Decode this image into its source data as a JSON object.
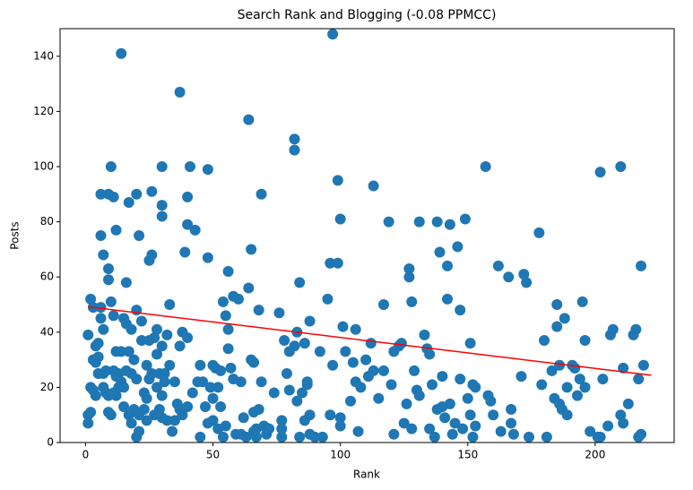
{
  "chart_data": {
    "type": "scatter",
    "title": "Search Rank and Blogging (-0.08 PPMCC)",
    "x_label": "Rank",
    "y_label": "Posts",
    "color": "#1f77b4",
    "x": [
      1,
      1,
      1,
      2,
      2,
      2,
      3,
      3,
      3,
      4,
      4,
      4,
      5,
      5,
      5,
      6,
      6,
      6,
      6,
      7,
      7,
      7,
      7,
      8,
      8,
      9,
      9,
      9,
      9,
      9,
      10,
      10,
      10,
      11,
      11,
      11,
      11,
      12,
      12,
      12,
      12,
      13,
      13,
      14,
      14,
      14,
      15,
      15,
      15,
      16,
      16,
      16,
      17,
      17,
      17,
      18,
      18,
      18,
      19,
      19,
      20,
      20,
      20,
      20,
      21,
      21,
      21,
      22,
      22,
      23,
      23,
      24,
      24,
      24,
      25,
      25,
      25,
      26,
      26,
      26,
      27,
      27,
      28,
      28,
      28,
      29,
      29,
      30,
      30,
      30,
      30,
      30,
      30,
      31,
      31,
      32,
      32,
      33,
      33,
      34,
      35,
      35,
      36,
      37,
      37,
      38,
      40,
      40,
      39,
      41,
      38,
      40,
      37,
      40,
      42,
      43,
      44,
      45,
      45,
      46,
      47,
      48,
      48,
      48,
      49,
      50,
      50,
      50,
      51,
      52,
      52,
      53,
      53,
      54,
      54,
      55,
      55,
      56,
      56,
      56,
      57,
      58,
      58,
      59,
      60,
      61,
      61,
      62,
      63,
      64,
      64,
      65,
      65,
      66,
      66,
      66,
      67,
      67,
      68,
      69,
      69,
      68,
      70,
      71,
      72,
      74,
      76,
      77,
      77,
      77,
      78,
      79,
      80,
      80,
      82,
      82,
      82,
      83,
      83,
      84,
      84,
      85,
      86,
      86,
      87,
      87,
      88,
      88,
      88,
      90,
      92,
      93,
      95,
      96,
      96,
      97,
      97,
      99,
      99,
      100,
      100,
      100,
      101,
      102,
      104,
      105,
      106,
      106,
      107,
      108,
      110,
      111,
      112,
      113,
      113,
      115,
      117,
      117,
      119,
      120,
      121,
      121,
      123,
      124,
      125,
      126,
      127,
      127,
      128,
      128,
      129,
      130,
      131,
      131,
      133,
      134,
      135,
      135,
      136,
      137,
      138,
      138,
      139,
      140,
      140,
      141,
      142,
      142,
      143,
      143,
      144,
      145,
      146,
      147,
      147,
      148,
      149,
      150,
      151,
      151,
      152,
      152,
      153,
      153,
      157,
      158,
      159,
      160,
      162,
      163,
      166,
      167,
      167,
      168,
      171,
      172,
      173,
      174,
      178,
      179,
      180,
      181,
      183,
      184,
      185,
      185,
      186,
      186,
      187,
      188,
      189,
      189,
      191,
      192,
      192,
      193,
      194,
      195,
      196,
      196,
      198,
      201,
      202,
      202,
      203,
      205,
      206,
      207,
      210,
      210,
      211,
      211,
      213,
      215,
      216,
      217,
      217,
      218,
      218,
      219
    ],
    "y": [
      39,
      10,
      7,
      52,
      11,
      20,
      49,
      30,
      19,
      17,
      29,
      35,
      25,
      36,
      31,
      45,
      49,
      75,
      90,
      25,
      68,
      41,
      20,
      18,
      26,
      17,
      59,
      63,
      90,
      11,
      100,
      51,
      10,
      89,
      46,
      26,
      18,
      77,
      33,
      24,
      17,
      25,
      20,
      141,
      33,
      22,
      20,
      45,
      13,
      43,
      58,
      26,
      87,
      33,
      10,
      7,
      41,
      25,
      12,
      30,
      2,
      90,
      48,
      23,
      75,
      4,
      10,
      44,
      37,
      18,
      12,
      28,
      16,
      8,
      23,
      37,
      66,
      91,
      68,
      25,
      10,
      38,
      32,
      41,
      20,
      25,
      12,
      100,
      86,
      82,
      35,
      9,
      17,
      25,
      22,
      39,
      8,
      50,
      28,
      4,
      22,
      8,
      14,
      127,
      12,
      10,
      79,
      89,
      69,
      100,
      40,
      38,
      35,
      13,
      18,
      77,
      22,
      2,
      28,
      22,
      13,
      99,
      67,
      7,
      20,
      28,
      8,
      16,
      27,
      5,
      20,
      26,
      13,
      2,
      51,
      46,
      6,
      62,
      41,
      34,
      27,
      53,
      23,
      3,
      52,
      22,
      3,
      9,
      2,
      117,
      56,
      70,
      30,
      29,
      11,
      4,
      2,
      5,
      48,
      90,
      22,
      12,
      6,
      3,
      5,
      18,
      47,
      8,
      5,
      2,
      37,
      25,
      33,
      19,
      110,
      106,
      35,
      40,
      15,
      58,
      2,
      18,
      36,
      8,
      22,
      21,
      44,
      10,
      3,
      2,
      33,
      2,
      52,
      65,
      10,
      148,
      28,
      65,
      95,
      81,
      9,
      6,
      42,
      33,
      15,
      29,
      41,
      22,
      4,
      20,
      30,
      24,
      36,
      93,
      26,
      16,
      50,
      26,
      80,
      21,
      33,
      3,
      35,
      36,
      7,
      14,
      63,
      60,
      51,
      5,
      26,
      19,
      80,
      17,
      39,
      34,
      5,
      32,
      21,
      2,
      12,
      80,
      69,
      24,
      13,
      9,
      64,
      52,
      79,
      14,
      3,
      7,
      71,
      48,
      23,
      5,
      81,
      16,
      10,
      36,
      2,
      21,
      20,
      6,
      100,
      17,
      15,
      10,
      64,
      4,
      60,
      12,
      7,
      3,
      24,
      61,
      58,
      2,
      76,
      21,
      37,
      2,
      26,
      16,
      50,
      42,
      28,
      14,
      12,
      45,
      20,
      10,
      28,
      27,
      27,
      17,
      23,
      51,
      20,
      37,
      4,
      2,
      98,
      2,
      23,
      6,
      39,
      41,
      100,
      10,
      7,
      27,
      14,
      39,
      41,
      2,
      23,
      64,
      3,
      28
    ],
    "trend_line": {
      "x": [
        1,
        222
      ],
      "y": [
        49.2,
        24.4
      ],
      "color": "#ff0000"
    },
    "xlim": [
      -10,
      231
    ],
    "ylim": [
      0,
      150
    ],
    "xticks": [
      0,
      50,
      100,
      150,
      200
    ],
    "yticks": [
      0,
      20,
      40,
      60,
      80,
      100,
      120,
      140
    ]
  }
}
